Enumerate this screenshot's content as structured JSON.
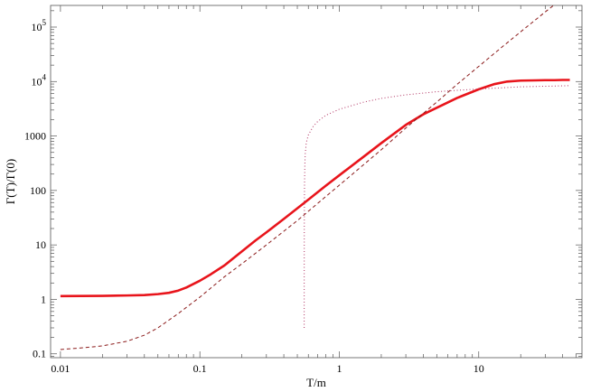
{
  "chart_data": {
    "type": "line",
    "title": "",
    "xlabel": "T/m",
    "ylabel": "Γ(T)/Γ(0)",
    "xscale": "log",
    "yscale": "log",
    "xlim": [
      0.0085,
      55
    ],
    "ylim": [
      0.085,
      250000
    ],
    "grid": false,
    "legend": "none",
    "x_ticks": [
      {
        "value": 0.01,
        "label": "0.01"
      },
      {
        "value": 0.1,
        "label": "0.1"
      },
      {
        "value": 1,
        "label": "1"
      },
      {
        "value": 10,
        "label": "10"
      }
    ],
    "y_ticks": [
      {
        "value": 0.1,
        "label": "0.1",
        "sup": ""
      },
      {
        "value": 1,
        "label": "1",
        "sup": ""
      },
      {
        "value": 10,
        "label": "10",
        "sup": ""
      },
      {
        "value": 100,
        "label": "100",
        "sup": ""
      },
      {
        "value": 1000,
        "label": "1000",
        "sup": ""
      },
      {
        "value": 10000,
        "label": "10",
        "sup": "4"
      },
      {
        "value": 100000,
        "label": "10",
        "sup": "5"
      }
    ],
    "series": [
      {
        "style": "solid",
        "color": "#e8141b",
        "x": [
          0.01,
          0.02,
          0.03,
          0.04,
          0.05,
          0.06,
          0.07,
          0.08,
          0.1,
          0.12,
          0.15,
          0.2,
          0.25,
          0.3,
          0.4,
          0.5,
          0.6,
          0.7,
          0.8,
          1,
          1.5,
          2,
          3,
          4,
          5,
          7,
          10,
          13,
          16,
          20,
          25,
          30,
          35,
          40,
          45
        ],
        "y": [
          1.15,
          1.16,
          1.18,
          1.2,
          1.25,
          1.32,
          1.45,
          1.65,
          2.2,
          2.9,
          4.2,
          7.6,
          12,
          17,
          30,
          47,
          68,
          93,
          122,
          190,
          420,
          740,
          1600,
          2500,
          3300,
          5000,
          7200,
          9000,
          10000,
          10400,
          10500,
          10600,
          10600,
          10700,
          10700
        ]
      },
      {
        "style": "dashed",
        "color": "#8b1a1a",
        "x": [
          0.01,
          0.015,
          0.02,
          0.03,
          0.04,
          0.05,
          0.07,
          0.1,
          0.15,
          0.2,
          0.3,
          0.5,
          0.7,
          1,
          1.5,
          2,
          3,
          5,
          7,
          10,
          15,
          20,
          30,
          45
        ],
        "y": [
          0.12,
          0.13,
          0.14,
          0.17,
          0.22,
          0.3,
          0.55,
          1.1,
          2.6,
          4.5,
          10,
          28,
          58,
          125,
          300,
          560,
          1400,
          4200,
          8900,
          19000,
          45000,
          82000,
          190000,
          430000
        ]
      },
      {
        "style": "dotted",
        "color": "#b03060",
        "x": [
          0.56,
          0.5602,
          0.561,
          0.563,
          0.566,
          0.57,
          0.58,
          0.6,
          0.65,
          0.7,
          0.8,
          1,
          1.5,
          2,
          3,
          5,
          7,
          10,
          15,
          20,
          30,
          45
        ],
        "y": [
          0.3,
          2,
          20,
          130,
          300,
          480,
          760,
          1050,
          1500,
          1850,
          2400,
          3100,
          4200,
          4900,
          5700,
          6500,
          6900,
          7300,
          7700,
          8000,
          8200,
          8400
        ]
      }
    ]
  }
}
